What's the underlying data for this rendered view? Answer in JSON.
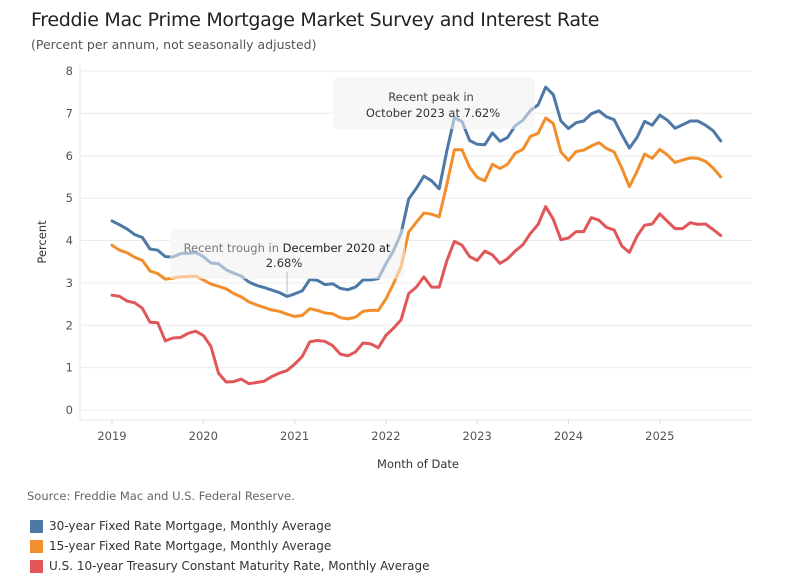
{
  "title": "Freddie Mac Prime Mortgage Market Survey and Interest Rate",
  "subtitle": "(Percent per annum, not seasonally adjusted)",
  "source": "Source: Freddie Mac and U.S. Federal Reserve.",
  "chart_data": {
    "type": "line",
    "title": "Freddie Mac Prime Mortgage Market Survey and Interest Rate",
    "subtitle": "(Percent per annum, not seasonally adjusted)",
    "xlabel": "Month of Date",
    "ylabel": "Percent",
    "ylim": [
      0,
      8
    ],
    "yticks": [
      "0",
      "1",
      "2",
      "3",
      "4",
      "5",
      "6",
      "7",
      "8"
    ],
    "xticks": [
      "2019",
      "2020",
      "2021",
      "2022",
      "2023",
      "2024",
      "2025"
    ],
    "grid": true,
    "legend_position": "bottom-left",
    "x_start": "2019-01",
    "x_end": "2025-09",
    "x_frequency": "monthly",
    "series": [
      {
        "name": "30-year Fixed Rate Mortgage, Monthly Average",
        "color": "#4e79a7",
        "values": [
          4.46,
          4.37,
          4.27,
          4.14,
          4.07,
          3.8,
          3.77,
          3.62,
          3.61,
          3.69,
          3.7,
          3.72,
          3.62,
          3.47,
          3.45,
          3.31,
          3.23,
          3.16,
          3.02,
          2.94,
          2.89,
          2.83,
          2.77,
          2.68,
          2.74,
          2.81,
          3.08,
          3.06,
          2.96,
          2.98,
          2.87,
          2.84,
          2.9,
          3.07,
          3.07,
          3.1,
          3.45,
          3.76,
          4.17,
          4.98,
          5.23,
          5.52,
          5.41,
          5.22,
          6.11,
          6.9,
          6.81,
          6.36,
          6.27,
          6.26,
          6.54,
          6.34,
          6.43,
          6.71,
          6.84,
          7.07,
          7.2,
          7.62,
          7.44,
          6.82,
          6.64,
          6.78,
          6.82,
          6.99,
          7.06,
          6.92,
          6.85,
          6.5,
          6.18,
          6.43,
          6.81,
          6.72,
          6.96,
          6.84,
          6.65,
          6.73,
          6.82,
          6.82,
          6.72,
          6.59,
          6.35
        ]
      },
      {
        "name": "15-year Fixed Rate Mortgage, Monthly Average",
        "color": "#f28e2b",
        "values": [
          3.89,
          3.77,
          3.71,
          3.6,
          3.53,
          3.28,
          3.22,
          3.09,
          3.11,
          3.14,
          3.15,
          3.16,
          3.07,
          2.97,
          2.92,
          2.86,
          2.75,
          2.67,
          2.55,
          2.48,
          2.42,
          2.36,
          2.33,
          2.26,
          2.21,
          2.23,
          2.39,
          2.35,
          2.29,
          2.27,
          2.18,
          2.15,
          2.19,
          2.33,
          2.35,
          2.35,
          2.62,
          2.98,
          3.39,
          4.2,
          4.43,
          4.65,
          4.62,
          4.56,
          5.32,
          6.14,
          6.14,
          5.73,
          5.49,
          5.41,
          5.8,
          5.7,
          5.8,
          6.06,
          6.15,
          6.46,
          6.53,
          6.89,
          6.76,
          6.09,
          5.89,
          6.1,
          6.13,
          6.23,
          6.31,
          6.17,
          6.09,
          5.71,
          5.27,
          5.63,
          6.04,
          5.94,
          6.15,
          6.02,
          5.84,
          5.9,
          5.95,
          5.94,
          5.87,
          5.71,
          5.5
        ]
      },
      {
        "name": "U.S. 10-year Treasury Constant Maturity Rate, Monthly Average",
        "color": "#e15759",
        "values": [
          2.71,
          2.68,
          2.57,
          2.53,
          2.4,
          2.07,
          2.06,
          1.63,
          1.7,
          1.71,
          1.81,
          1.86,
          1.76,
          1.5,
          0.87,
          0.66,
          0.67,
          0.73,
          0.62,
          0.65,
          0.68,
          0.79,
          0.87,
          0.93,
          1.08,
          1.26,
          1.61,
          1.64,
          1.62,
          1.52,
          1.32,
          1.28,
          1.37,
          1.58,
          1.56,
          1.47,
          1.76,
          1.93,
          2.13,
          2.75,
          2.9,
          3.14,
          2.9,
          2.9,
          3.52,
          3.98,
          3.89,
          3.62,
          3.53,
          3.75,
          3.66,
          3.46,
          3.57,
          3.75,
          3.9,
          4.17,
          4.38,
          4.8,
          4.5,
          4.02,
          4.06,
          4.21,
          4.21,
          4.54,
          4.48,
          4.31,
          4.25,
          3.87,
          3.72,
          4.1,
          4.36,
          4.39,
          4.63,
          4.45,
          4.28,
          4.28,
          4.42,
          4.38,
          4.39,
          4.26,
          4.12
        ]
      }
    ],
    "annotations": [
      {
        "text_prefix": "Recent trough in",
        "text_bold": "December 2020 at",
        "text_line2": "2.68%",
        "date": "2020-12",
        "value": 2.68
      },
      {
        "text_line1": "Recent peak in",
        "text_line2": "October 2023 at 7.62%",
        "date": "2023-10",
        "value": 7.62
      }
    ]
  }
}
